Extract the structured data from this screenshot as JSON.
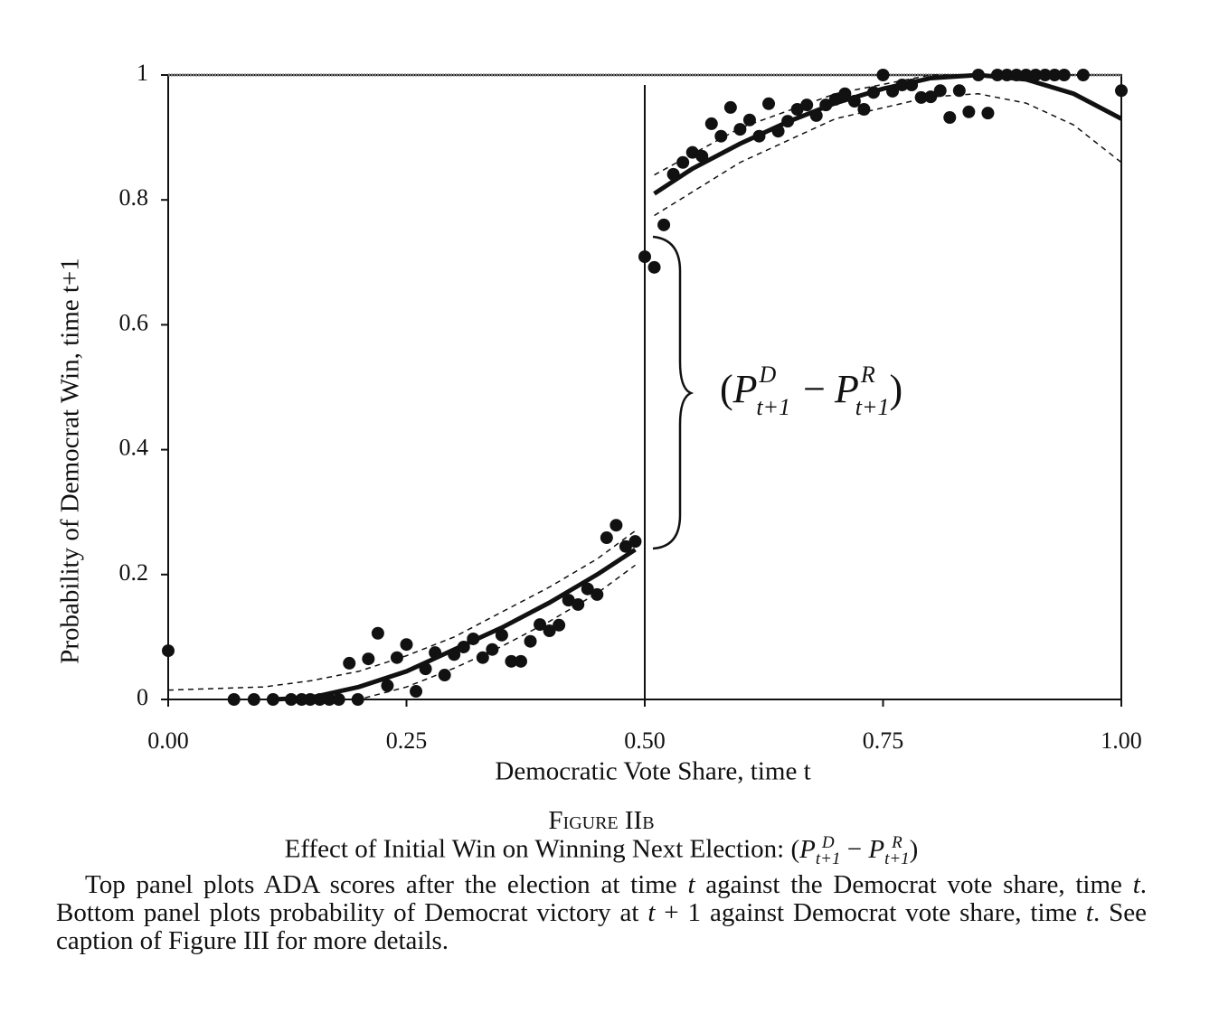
{
  "chart_data": {
    "type": "scatter",
    "xlabel": "Democratic Vote Share, time t",
    "ylabel": "Probability of Democrat Win, time t+1",
    "xlim": [
      0,
      1
    ],
    "ylim": [
      0,
      1
    ],
    "xticks": [
      {
        "value": 0,
        "label": "0.00"
      },
      {
        "value": 0.25,
        "label": "0.25"
      },
      {
        "value": 0.5,
        "label": "0.50"
      },
      {
        "value": 0.75,
        "label": "0.75"
      },
      {
        "value": 1,
        "label": "1.00"
      }
    ],
    "yticks": [
      0,
      0.2,
      0.4,
      0.6,
      0.8,
      1
    ],
    "threshold": 0.5,
    "x": [
      0.0,
      0.069,
      0.09,
      0.11,
      0.129,
      0.14,
      0.149,
      0.159,
      0.169,
      0.179,
      0.199,
      0.19,
      0.21,
      0.22,
      0.23,
      0.24,
      0.25,
      0.26,
      0.27,
      0.28,
      0.29,
      0.3,
      0.31,
      0.32,
      0.33,
      0.34,
      0.35,
      0.36,
      0.37,
      0.38,
      0.39,
      0.4,
      0.41,
      0.42,
      0.43,
      0.44,
      0.45,
      0.46,
      0.47,
      0.48,
      0.49,
      0.5,
      0.51,
      0.52,
      0.53,
      0.54,
      0.55,
      0.56,
      0.57,
      0.58,
      0.59,
      0.6,
      0.61,
      0.62,
      0.63,
      0.64,
      0.65,
      0.66,
      0.67,
      0.68,
      0.69,
      0.7,
      0.71,
      0.72,
      0.73,
      0.74,
      0.75,
      0.76,
      0.77,
      0.78,
      0.79,
      0.8,
      0.81,
      0.82,
      0.83,
      0.84,
      0.85,
      0.86,
      0.87,
      0.88,
      0.89,
      0.9,
      0.91,
      0.92,
      0.93,
      0.94,
      0.96,
      1.0
    ],
    "series": [
      {
        "color": "#111111",
        "values": [
          0.078,
          0,
          0,
          0,
          0,
          0,
          0,
          0,
          0,
          0,
          0,
          0.058,
          0.065,
          0.106,
          0.022,
          0.067,
          0.088,
          0.013,
          0.049,
          0.075,
          0.039,
          0.072,
          0.084,
          0.097,
          0.067,
          0.08,
          0.103,
          0.061,
          0.061,
          0.093,
          0.12,
          0.11,
          0.119,
          0.159,
          0.152,
          0.177,
          0.168,
          0.259,
          0.279,
          0.245,
          0.253,
          0.709,
          0.692,
          0.76,
          0.841,
          0.86,
          0.876,
          0.87,
          0.922,
          0.902,
          0.948,
          0.913,
          0.928,
          0.902,
          0.954,
          0.91,
          0.926,
          0.945,
          0.952,
          0.935,
          0.952,
          0.961,
          0.97,
          0.958,
          0.945,
          0.972,
          1.0,
          0.974,
          0.984,
          0.984,
          0.964,
          0.965,
          0.975,
          0.932,
          0.975,
          0.941,
          1.0,
          0.939,
          1.0,
          1.0,
          1.0,
          1.0,
          1.0,
          1.0,
          1.0,
          1.0,
          1.0,
          0.975
        ]
      }
    ],
    "fits": [
      {
        "style": "solid",
        "x": [
          0.11,
          0.15,
          0.2,
          0.25,
          0.3,
          0.35,
          0.4,
          0.45,
          0.49
        ],
        "values": [
          0,
          0.003,
          0.02,
          0.045,
          0.08,
          0.115,
          0.155,
          0.2,
          0.24
        ]
      },
      {
        "style": "dashed",
        "x": [
          0,
          0.1,
          0.15,
          0.2,
          0.25,
          0.3,
          0.35,
          0.4,
          0.45,
          0.49
        ],
        "values": [
          0.015,
          0.02,
          0.03,
          0.045,
          0.07,
          0.1,
          0.14,
          0.18,
          0.225,
          0.27
        ]
      },
      {
        "style": "dashed",
        "x": [
          0.05,
          0.2,
          0.25,
          0.3,
          0.35,
          0.4,
          0.45,
          0.49
        ],
        "values": [
          0,
          0,
          0.02,
          0.05,
          0.085,
          0.125,
          0.17,
          0.215
        ]
      },
      {
        "style": "solid",
        "x": [
          0.51,
          0.55,
          0.6,
          0.65,
          0.7,
          0.75,
          0.8,
          0.85,
          0.9,
          0.95,
          1.0
        ],
        "values": [
          0.81,
          0.85,
          0.89,
          0.925,
          0.955,
          0.978,
          0.995,
          1.0,
          0.993,
          0.97,
          0.93
        ]
      },
      {
        "style": "dashed",
        "x": [
          0.51,
          0.6,
          0.7,
          0.8,
          0.85,
          0.95
        ],
        "values": [
          0.84,
          0.915,
          0.97,
          1.0,
          1.0,
          1.0
        ]
      },
      {
        "style": "dashed",
        "x": [
          0.51,
          0.6,
          0.7,
          0.8,
          0.85,
          0.9,
          0.95,
          1.0
        ],
        "values": [
          0.775,
          0.86,
          0.93,
          0.965,
          0.97,
          0.955,
          0.92,
          0.86
        ]
      }
    ],
    "annotation": {
      "open": "(",
      "p1": "P",
      "sup1": "D",
      "sub1": "t+1",
      "minus": "−",
      "p2": "P",
      "sup2": "R",
      "sub2": "t+1",
      "close": ")"
    }
  },
  "caption": {
    "label": "Figure IIb",
    "title": "Effect of Initial Win on Winning Next Election: ",
    "title_math": {
      "open": "(",
      "p1": "P",
      "sup1": "D",
      "sub1": "t+1",
      "minus": "−",
      "p2": "P",
      "sup2": "R",
      "sub2": "t+1",
      "close": ")"
    },
    "text": [
      "Top panel plots ADA scores after the election at time ",
      "t",
      " against the Democrat vote share, time ",
      "t",
      ". Bottom panel plots probability of Democrat victory at ",
      "t",
      " + 1 against Democrat vote share, time ",
      "t",
      ". See caption of Figure III for more details."
    ]
  }
}
